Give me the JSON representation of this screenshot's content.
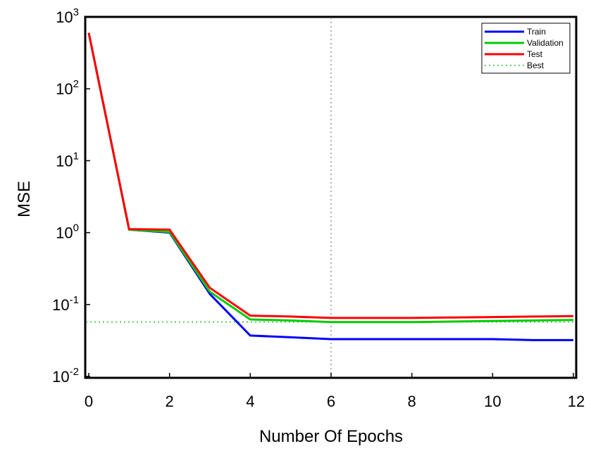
{
  "chart_data": {
    "type": "line",
    "title": "",
    "xlabel": "Number Of Epochs",
    "ylabel": "MSE",
    "xlim": [
      0,
      12
    ],
    "ylim": [
      0.01,
      1000
    ],
    "yscale": "log",
    "xticks": [
      0,
      2,
      4,
      6,
      8,
      10,
      12
    ],
    "xtick_labels": [
      "0",
      "2",
      "4",
      "6",
      "8",
      "10",
      "12"
    ],
    "yticks": [
      0.01,
      0.1,
      1,
      10,
      100,
      1000
    ],
    "ytick_exponents": [
      "-2",
      "-1",
      "0",
      "1",
      "2",
      "3"
    ],
    "ytick_base": "10",
    "grid": false,
    "legend_position": "top-right",
    "x": [
      0,
      1,
      2,
      3,
      4,
      5,
      6,
      7,
      8,
      9,
      10,
      11,
      12
    ],
    "series": [
      {
        "name": "Train",
        "color": "#0000ff",
        "values": [
          600,
          1.1,
          1.0,
          0.14,
          0.037,
          0.035,
          0.033,
          0.033,
          0.033,
          0.033,
          0.033,
          0.032,
          0.032
        ]
      },
      {
        "name": "Validation",
        "color": "#00cc00",
        "values": [
          600,
          1.1,
          1.02,
          0.15,
          0.062,
          0.06,
          0.057,
          0.057,
          0.057,
          0.058,
          0.059,
          0.06,
          0.061
        ]
      },
      {
        "name": "Test",
        "color": "#ff0000",
        "values": [
          600,
          1.12,
          1.1,
          0.17,
          0.07,
          0.068,
          0.065,
          0.065,
          0.065,
          0.066,
          0.067,
          0.068,
          0.069
        ]
      }
    ],
    "best": {
      "name": "Best",
      "color": "#00bb00",
      "epoch": 6,
      "value": 0.057
    }
  }
}
